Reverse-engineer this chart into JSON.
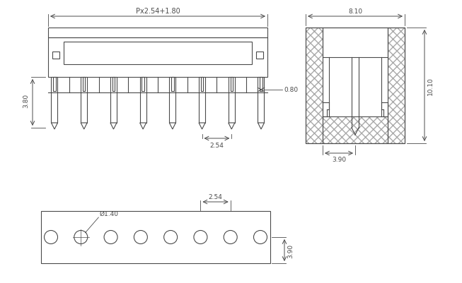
{
  "bg_color": "#ffffff",
  "line_color": "#4a4a4a",
  "dim_color": "#4a4a4a",
  "fig_width": 6.53,
  "fig_height": 4.02,
  "front_view": {
    "label_px2541_80": "Px2.54+1.80",
    "dim_380": "3.80",
    "dim_080": "0.80",
    "dim_254_bot": "2.54",
    "num_pins": 8
  },
  "side_view": {
    "dim_810": "8.10",
    "dim_1010": "10.10",
    "dim_390": "3.90"
  },
  "bottom_view": {
    "dim_dia140": "Ø1.40",
    "dim_254": "2.54",
    "dim_390": "3.90",
    "num_holes": 8
  }
}
